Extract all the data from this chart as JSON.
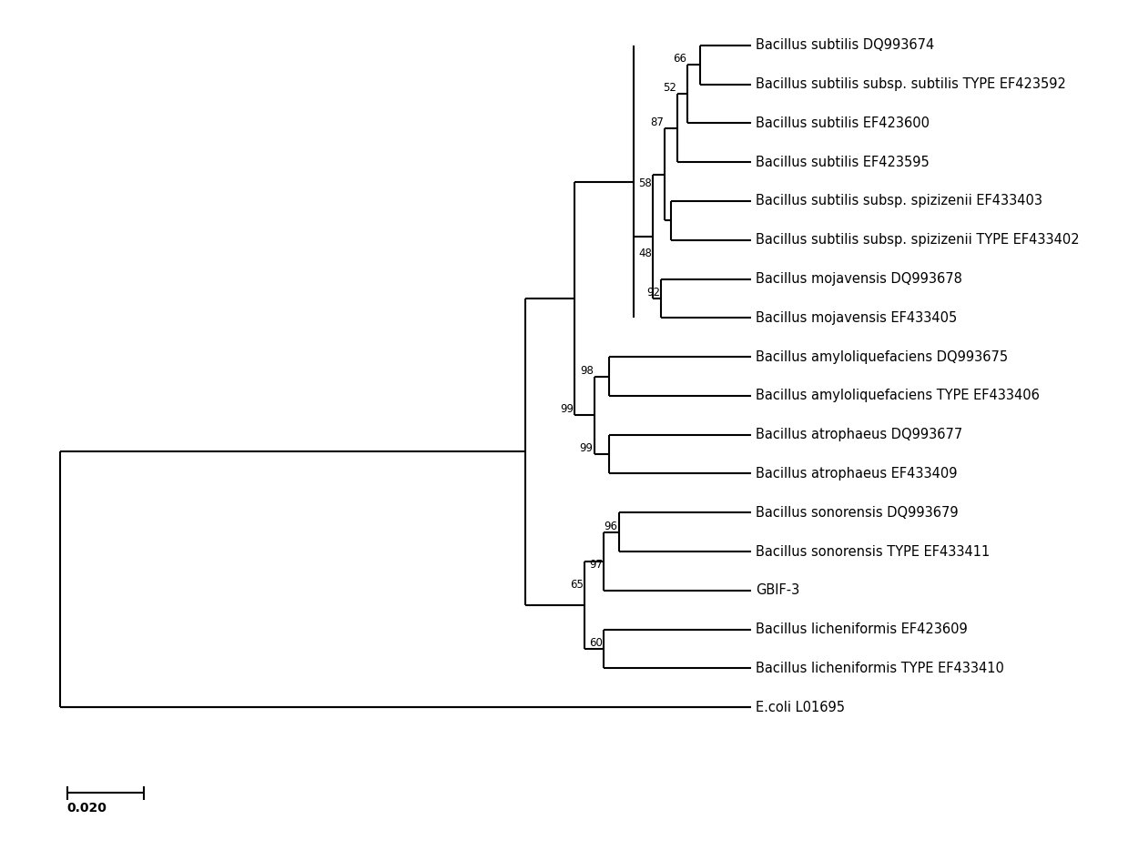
{
  "taxa": [
    "Bacillus subtilis DQ993674",
    "Bacillus subtilis subsp. subtilis TYPE EF423592",
    "Bacillus subtilis EF423600",
    "Bacillus subtilis EF423595",
    "Bacillus subtilis subsp. spizizenii EF433403",
    "Bacillus subtilis subsp. spizizenii TYPE EF433402",
    "Bacillus mojavensis DQ993678",
    "Bacillus mojavensis EF433405",
    "Bacillus amyloliquefaciens DQ993675",
    "Bacillus amyloliquefaciens TYPE EF433406",
    "Bacillus atrophaeus DQ993677",
    "Bacillus atrophaeus EF433409",
    "Bacillus sonorensis DQ993679",
    "Bacillus sonorensis TYPE EF433411",
    "GBIF-3",
    "Bacillus licheniformis EF423609",
    "Bacillus licheniformis TYPE EF433410",
    "E.coli L01695"
  ],
  "background_color": "#ffffff",
  "line_color": "#000000",
  "line_width": 1.5,
  "font_size": 10.5,
  "scale_bar_label": "0.020"
}
